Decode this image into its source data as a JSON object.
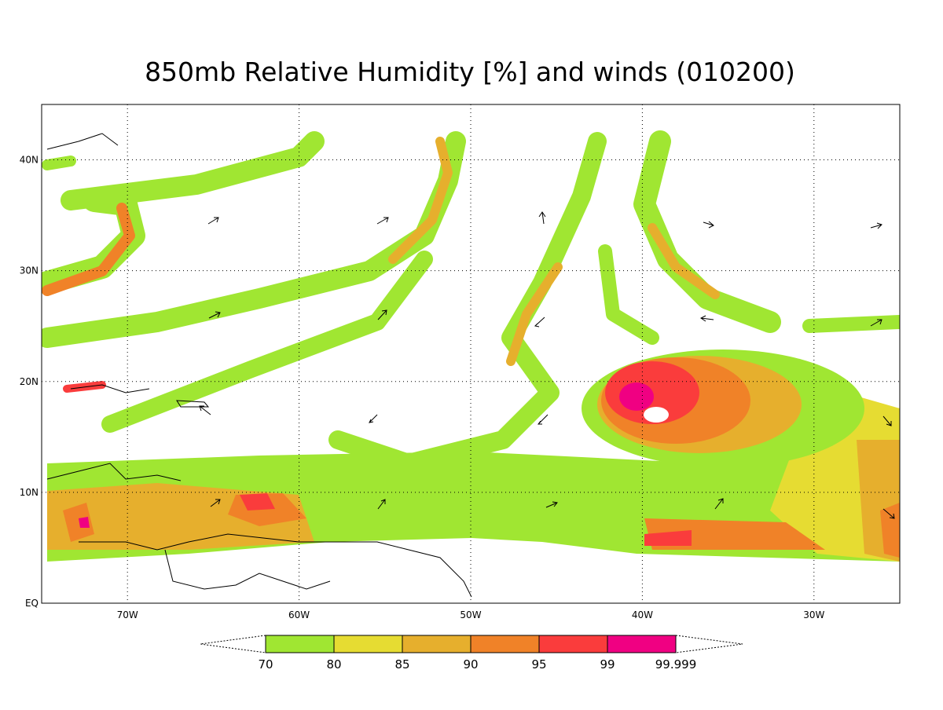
{
  "title": "850mb Relative Humidity [%] and winds (010200)",
  "map": {
    "xlim": [
      -75,
      -25
    ],
    "ylim": [
      0,
      45
    ],
    "xticks": [
      {
        "value": -70,
        "label": "70W"
      },
      {
        "value": -60,
        "label": "60W"
      },
      {
        "value": -50,
        "label": "50W"
      },
      {
        "value": -40,
        "label": "40W"
      },
      {
        "value": -30,
        "label": "30W"
      }
    ],
    "yticks": [
      {
        "value": 0,
        "label": "EQ"
      },
      {
        "value": 10,
        "label": "10N"
      },
      {
        "value": 20,
        "label": "20N"
      },
      {
        "value": 30,
        "label": "30N"
      },
      {
        "value": 40,
        "label": "40N"
      }
    ]
  },
  "colorbar": {
    "levels": [
      70,
      80,
      85,
      90,
      95,
      99,
      99.999
    ],
    "colors": [
      "#a0e632",
      "#e6dc32",
      "#e6af2d",
      "#f08228",
      "#fa3c3c",
      "#f00082"
    ]
  }
}
